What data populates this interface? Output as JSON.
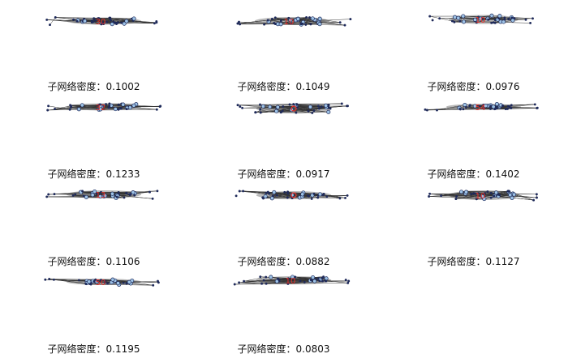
{
  "caption_label": "子网络密度：",
  "colors": {
    "node": "#1f2a5a",
    "node_fill": "#9ec3e6",
    "edge": "#333333",
    "hull": "#b9b9b9",
    "center_label": "#e8302a"
  },
  "panels": [
    {
      "density": "0.1002",
      "center_label": "30"
    },
    {
      "density": "0.1049",
      "center_label": "10"
    },
    {
      "density": "0.0976",
      "center_label": "10"
    },
    {
      "density": "0.1233",
      "center_label": "32"
    },
    {
      "density": "0.0917",
      "center_label": ""
    },
    {
      "density": "0.1402",
      "center_label": "54"
    },
    {
      "density": "0.1106",
      "center_label": "13"
    },
    {
      "density": "0.0882",
      "center_label": ""
    },
    {
      "density": "0.1127",
      "center_label": "10"
    },
    {
      "density": "0.1195",
      "center_label": "50"
    },
    {
      "density": "0.0803",
      "center_label": "10"
    }
  ]
}
